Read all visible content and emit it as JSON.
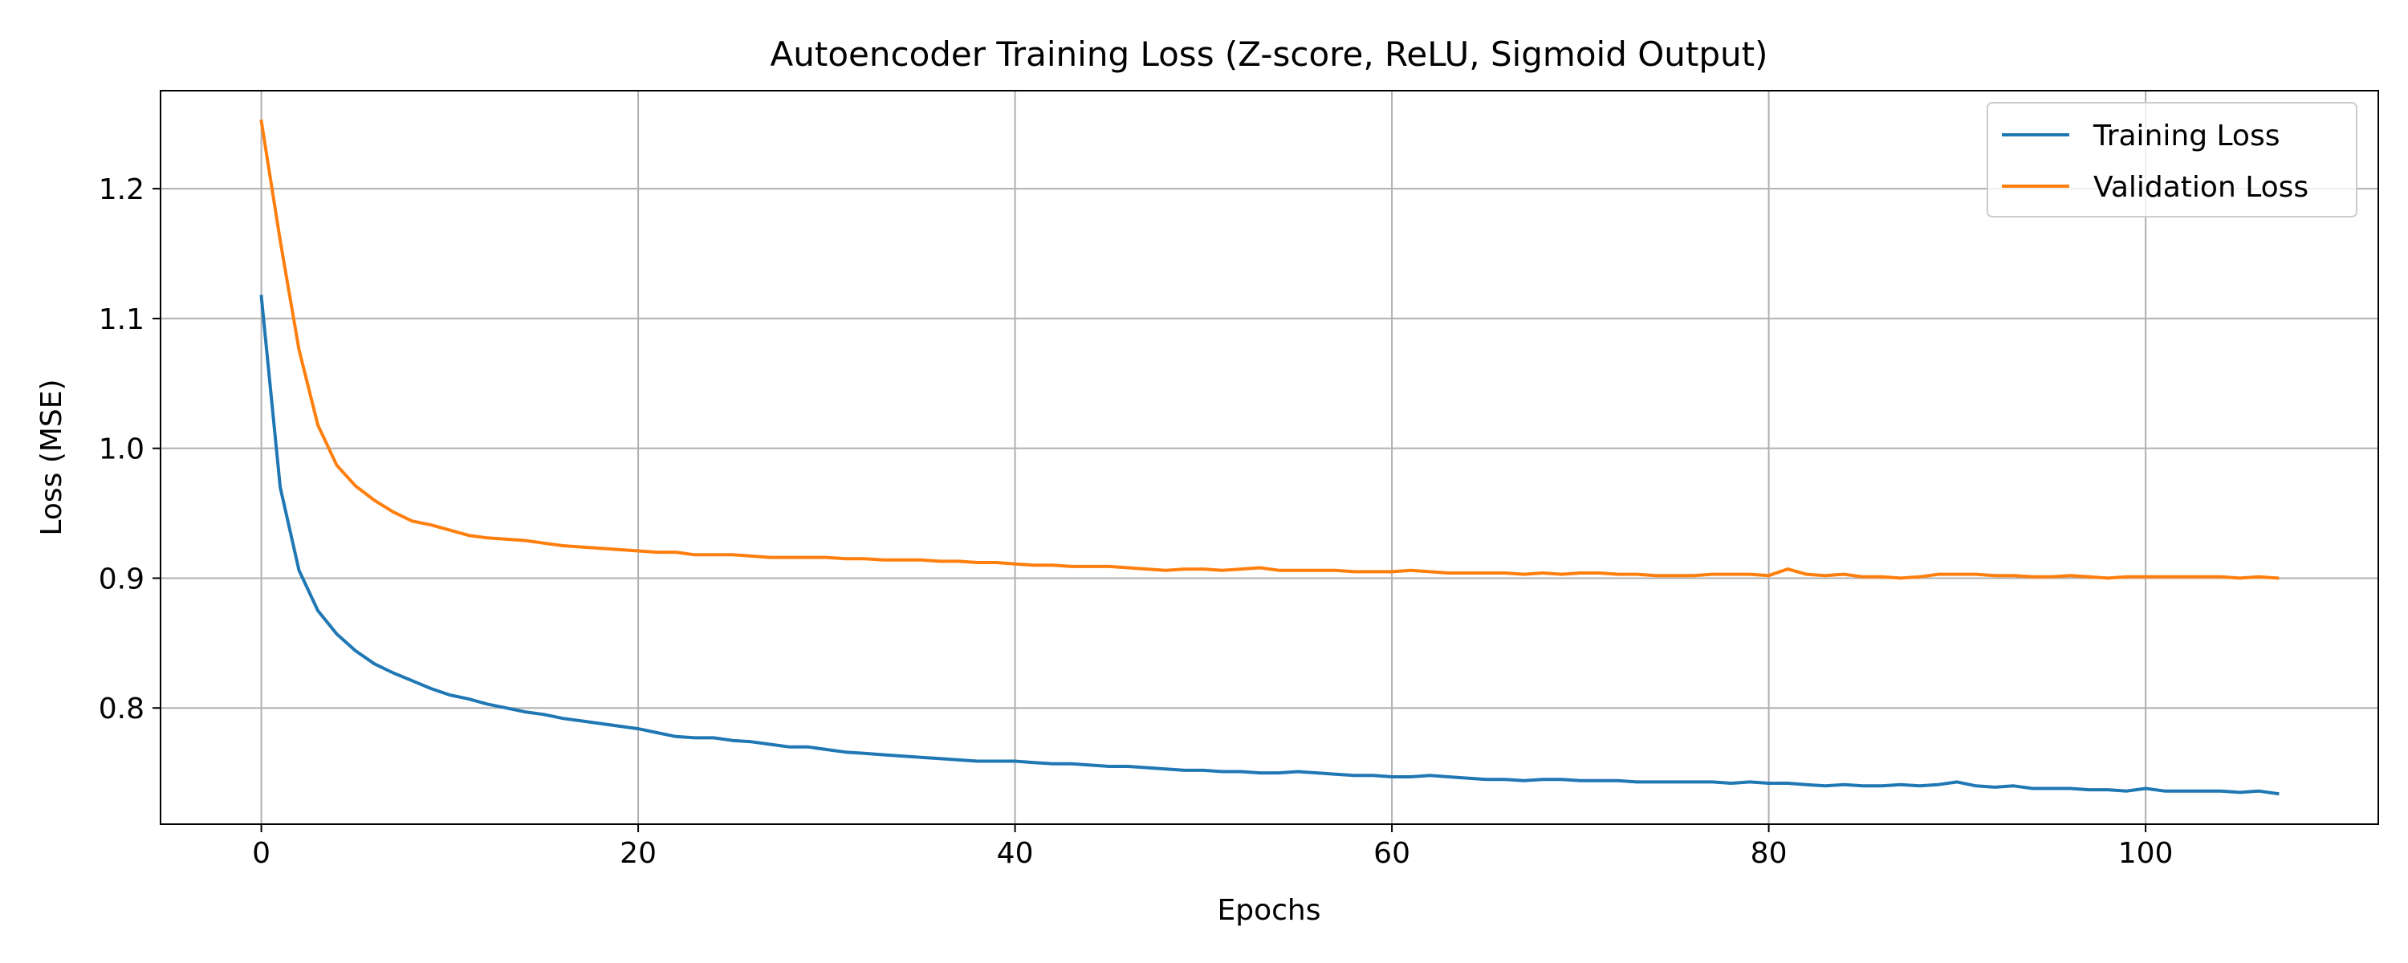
{
  "chart_data": {
    "type": "line",
    "title": "Autoencoder Training Loss (Z-score, ReLU, Sigmoid Output)",
    "xlabel": "Epochs",
    "ylabel": "Loss (MSE)",
    "xlim": [
      -5.35,
      112.35
    ],
    "ylim": [
      0.7105,
      1.2755
    ],
    "xticks": [
      0,
      20,
      40,
      60,
      80,
      100
    ],
    "yticks": [
      0.8,
      0.9,
      1.0,
      1.1,
      1.2
    ],
    "xtick_labels": [
      "0",
      "20",
      "40",
      "60",
      "80",
      "100"
    ],
    "ytick_labels": [
      "0.8",
      "0.9",
      "1.0",
      "1.1",
      "1.2"
    ],
    "grid": true,
    "legend_position": "top-right",
    "x": [
      0,
      1,
      2,
      3,
      4,
      5,
      6,
      7,
      8,
      9,
      10,
      11,
      12,
      13,
      14,
      15,
      16,
      17,
      18,
      19,
      20,
      21,
      22,
      23,
      24,
      25,
      26,
      27,
      28,
      29,
      30,
      31,
      32,
      33,
      34,
      35,
      36,
      37,
      38,
      39,
      40,
      41,
      42,
      43,
      44,
      45,
      46,
      47,
      48,
      49,
      50,
      51,
      52,
      53,
      54,
      55,
      56,
      57,
      58,
      59,
      60,
      61,
      62,
      63,
      64,
      65,
      66,
      67,
      68,
      69,
      70,
      71,
      72,
      73,
      74,
      75,
      76,
      77,
      78,
      79,
      80,
      81,
      82,
      83,
      84,
      85,
      86,
      87,
      88,
      89,
      90,
      91,
      92,
      93,
      94,
      95,
      96,
      97,
      98,
      99,
      100,
      101,
      102,
      103,
      104,
      105,
      106,
      107
    ],
    "series": [
      {
        "name": "Training Loss",
        "color": "#1f77b4",
        "values": [
          1.117,
          0.97,
          0.906,
          0.875,
          0.857,
          0.844,
          0.834,
          0.827,
          0.821,
          0.815,
          0.81,
          0.807,
          0.803,
          0.8,
          0.797,
          0.795,
          0.792,
          0.79,
          0.788,
          0.786,
          0.784,
          0.781,
          0.778,
          0.777,
          0.777,
          0.775,
          0.774,
          0.772,
          0.77,
          0.77,
          0.768,
          0.766,
          0.765,
          0.764,
          0.763,
          0.762,
          0.761,
          0.76,
          0.759,
          0.759,
          0.759,
          0.758,
          0.757,
          0.757,
          0.756,
          0.755,
          0.755,
          0.754,
          0.753,
          0.752,
          0.752,
          0.751,
          0.751,
          0.75,
          0.75,
          0.751,
          0.75,
          0.749,
          0.748,
          0.748,
          0.747,
          0.747,
          0.748,
          0.747,
          0.746,
          0.745,
          0.745,
          0.744,
          0.745,
          0.745,
          0.744,
          0.744,
          0.744,
          0.743,
          0.743,
          0.743,
          0.743,
          0.743,
          0.742,
          0.743,
          0.742,
          0.742,
          0.741,
          0.74,
          0.741,
          0.74,
          0.74,
          0.741,
          0.74,
          0.741,
          0.743,
          0.74,
          0.739,
          0.74,
          0.738,
          0.738,
          0.738,
          0.737,
          0.737,
          0.736,
          0.738,
          0.736,
          0.736,
          0.736,
          0.736,
          0.735,
          0.736,
          0.734
        ]
      },
      {
        "name": "Validation Loss",
        "color": "#ff7f0e",
        "values": [
          1.252,
          1.16,
          1.076,
          1.018,
          0.987,
          0.971,
          0.96,
          0.951,
          0.944,
          0.941,
          0.937,
          0.933,
          0.931,
          0.93,
          0.929,
          0.927,
          0.925,
          0.924,
          0.923,
          0.922,
          0.921,
          0.92,
          0.92,
          0.918,
          0.918,
          0.918,
          0.917,
          0.916,
          0.916,
          0.916,
          0.916,
          0.915,
          0.915,
          0.914,
          0.914,
          0.914,
          0.913,
          0.913,
          0.912,
          0.912,
          0.911,
          0.91,
          0.91,
          0.909,
          0.909,
          0.909,
          0.908,
          0.907,
          0.906,
          0.907,
          0.907,
          0.906,
          0.907,
          0.908,
          0.906,
          0.906,
          0.906,
          0.906,
          0.905,
          0.905,
          0.905,
          0.906,
          0.905,
          0.904,
          0.904,
          0.904,
          0.904,
          0.903,
          0.904,
          0.903,
          0.904,
          0.904,
          0.903,
          0.903,
          0.902,
          0.902,
          0.902,
          0.903,
          0.903,
          0.903,
          0.902,
          0.907,
          0.903,
          0.902,
          0.903,
          0.901,
          0.901,
          0.9,
          0.901,
          0.903,
          0.903,
          0.903,
          0.902,
          0.902,
          0.901,
          0.901,
          0.902,
          0.901,
          0.9,
          0.901,
          0.901,
          0.901,
          0.901,
          0.901,
          0.901,
          0.9,
          0.901,
          0.9
        ]
      }
    ]
  }
}
